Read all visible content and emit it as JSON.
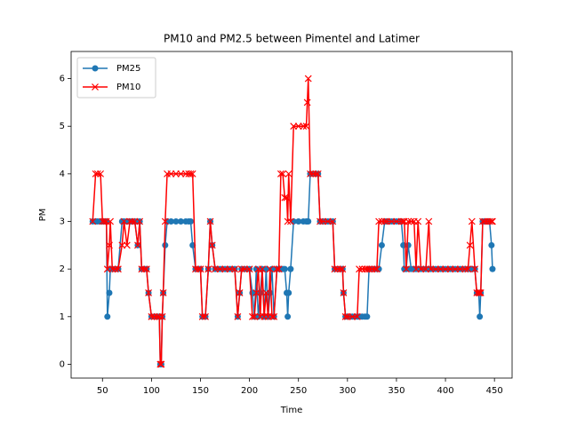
{
  "chart_data": {
    "type": "line",
    "title": "PM10 and PM2.5 between Pimentel and Latimer",
    "x_label": "Time",
    "y_label": "PM",
    "x": [
      40,
      43,
      45,
      48,
      50,
      52,
      54,
      55,
      57,
      58,
      60,
      63,
      66,
      70,
      72,
      75,
      78,
      80,
      83,
      86,
      88,
      90,
      93,
      95,
      97,
      100,
      103,
      106,
      108,
      109,
      110,
      111,
      112,
      114,
      116,
      120,
      125,
      130,
      135,
      138,
      140,
      142,
      145,
      148,
      150,
      152,
      155,
      158,
      160,
      162,
      165,
      170,
      175,
      180,
      185,
      188,
      190,
      192,
      195,
      200,
      203,
      205,
      207,
      209,
      211,
      213,
      215,
      217,
      219,
      221,
      223,
      225,
      228,
      230,
      232,
      234,
      236,
      238,
      239,
      240,
      242,
      245,
      250,
      255,
      258,
      259,
      260,
      262,
      265,
      268,
      270,
      272,
      275,
      280,
      285,
      287,
      290,
      293,
      295,
      296,
      298,
      300,
      305,
      310,
      312,
      315,
      318,
      320,
      322,
      325,
      328,
      330,
      332,
      335,
      338,
      340,
      345,
      350,
      355,
      357,
      358,
      360,
      362,
      365,
      368,
      370,
      372,
      375,
      380,
      383,
      385,
      390,
      395,
      400,
      405,
      410,
      415,
      420,
      423,
      425,
      427,
      430,
      432,
      434,
      435,
      436,
      438,
      440,
      443,
      445,
      447,
      448
    ],
    "series": [
      {
        "name": "PM25",
        "color": "#1f77b4",
        "marker": "o",
        "values": [
          3,
          3,
          3,
          3,
          3,
          3,
          3,
          1,
          1.5,
          2,
          2,
          2,
          2,
          3,
          3,
          3,
          3,
          3,
          3,
          2.5,
          3,
          2,
          2,
          2,
          1.5,
          1,
          1,
          1,
          1,
          0,
          0,
          1,
          1.5,
          2.5,
          3,
          3,
          3,
          3,
          3,
          3,
          3,
          2.5,
          2,
          2,
          2,
          1,
          1,
          2,
          3,
          2.5,
          2,
          2,
          2,
          2,
          2,
          1,
          1.5,
          2,
          2,
          2,
          1.5,
          1,
          2,
          1,
          1.5,
          2,
          1,
          2,
          1,
          1.5,
          2,
          1,
          2,
          2,
          2,
          2,
          2,
          1.5,
          1,
          1.5,
          2,
          3,
          3,
          3,
          3,
          3,
          3,
          4,
          4,
          4,
          4,
          3,
          3,
          3,
          3,
          2,
          2,
          2,
          2,
          1.5,
          1,
          1,
          1,
          1,
          1,
          1,
          1,
          1,
          2,
          2,
          2,
          2,
          2,
          2.5,
          3,
          3,
          3,
          3,
          3,
          2.5,
          2,
          2,
          2.5,
          2,
          2,
          2,
          2,
          2,
          2,
          2,
          2,
          2,
          2,
          2,
          2,
          2,
          2,
          2,
          2,
          2,
          2,
          2,
          1.5,
          1.5,
          1,
          1.5,
          3,
          3,
          3,
          3,
          2.5,
          2
        ]
      },
      {
        "name": "PM10",
        "color": "#ff0000",
        "marker": "x",
        "values": [
          3,
          4,
          4,
          4,
          3,
          3,
          3,
          2,
          2.5,
          3,
          2,
          2,
          2,
          2.5,
          3,
          2.5,
          3,
          3,
          3,
          2.5,
          3,
          2,
          2,
          2,
          1.5,
          1,
          1,
          1,
          1,
          0,
          0,
          1,
          1.5,
          3,
          4,
          4,
          4,
          4,
          4,
          4,
          4,
          4,
          2,
          2,
          2,
          1,
          1,
          2,
          3,
          2.5,
          2,
          2,
          2,
          2,
          2,
          1,
          1.5,
          2,
          2,
          2,
          1,
          1,
          1.5,
          2,
          1,
          2,
          1,
          1.5,
          1,
          2,
          1,
          1,
          2,
          2,
          4,
          4,
          3.5,
          3.5,
          3,
          4,
          3,
          5,
          5,
          5,
          5,
          5.5,
          6,
          4,
          4,
          4,
          4,
          3,
          3,
          3,
          3,
          2,
          2,
          2,
          2,
          1.5,
          1,
          1,
          1,
          1,
          2,
          2,
          2,
          2,
          2,
          2,
          2,
          2,
          3,
          3,
          3,
          3,
          3,
          3,
          3,
          3,
          3,
          2,
          3,
          3,
          3,
          2,
          3,
          2,
          2,
          3,
          2,
          2,
          2,
          2,
          2,
          2,
          2,
          2,
          2,
          2.5,
          3,
          2,
          1.5,
          1.5,
          1.5,
          1.5,
          3,
          3,
          3,
          3,
          3,
          3
        ]
      }
    ],
    "xlim": [
      18,
      468
    ],
    "ylim": [
      -0.29,
      6.57
    ],
    "xticks": [
      50,
      100,
      150,
      200,
      250,
      300,
      350,
      400,
      450
    ],
    "yticks": [
      0,
      1,
      2,
      3,
      4,
      5,
      6
    ],
    "legend": "upper left"
  }
}
